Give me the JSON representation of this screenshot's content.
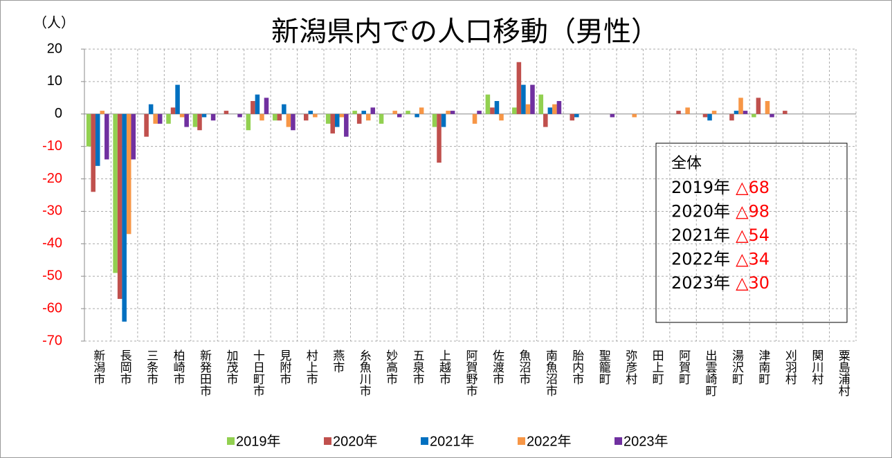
{
  "chart_data": {
    "type": "bar",
    "title": "新潟県内での人口移動（男性）",
    "y_unit": "（人）",
    "categories": [
      "新潟市",
      "長岡市",
      "三条市",
      "柏崎市",
      "新発田市",
      "加茂市",
      "十日町市",
      "見附市",
      "村上市",
      "燕市",
      "糸魚川市",
      "妙高市",
      "五泉市",
      "上越市",
      "阿賀野市",
      "佐渡市",
      "魚沼市",
      "南魚沼市",
      "胎内市",
      "聖籠町",
      "弥彦村",
      "田上町",
      "阿賀町",
      "出雲崎町",
      "湯沢町",
      "津南町",
      "刈羽村",
      "関川村",
      "粟島浦村"
    ],
    "series": [
      {
        "name": "2019年",
        "color": "#92d050",
        "values": [
          -10,
          -49,
          0,
          -3,
          -4,
          0,
          -5,
          -2,
          0,
          -3,
          1,
          -3,
          1,
          -4,
          0,
          6,
          2,
          6,
          0,
          0,
          0,
          0,
          0,
          0,
          0,
          -1,
          0,
          0,
          0
        ]
      },
      {
        "name": "2020年",
        "color": "#c0504d",
        "values": [
          -24,
          -57,
          -7,
          2,
          -5,
          1,
          4,
          -2,
          -2,
          -6,
          -3,
          0,
          0,
          -15,
          0,
          2,
          16,
          -4,
          -2,
          0,
          0,
          0,
          1,
          -1,
          -2,
          5,
          1,
          0,
          0
        ]
      },
      {
        "name": "2021年",
        "color": "#0070c0",
        "values": [
          -16,
          -64,
          3,
          9,
          -1,
          0,
          6,
          3,
          1,
          -4,
          1,
          0,
          -1,
          -4,
          0,
          4,
          9,
          2,
          -1,
          0,
          0,
          0,
          0,
          -2,
          1,
          0,
          0,
          0,
          0
        ]
      },
      {
        "name": "2022年",
        "color": "#f79646",
        "values": [
          1,
          -37,
          -3,
          -1,
          0,
          0,
          -2,
          -4,
          -1,
          -1,
          -2,
          1,
          2,
          1,
          -3,
          -2,
          3,
          3,
          0,
          0,
          -1,
          0,
          2,
          1,
          5,
          4,
          0,
          0,
          0
        ]
      },
      {
        "name": "2023年",
        "color": "#7030a0",
        "values": [
          -14,
          -14,
          -3,
          -4,
          -2,
          -1,
          5,
          -5,
          0,
          -7,
          2,
          -1,
          0,
          1,
          1,
          0,
          9,
          4,
          0,
          -1,
          0,
          0,
          0,
          0,
          1,
          -1,
          0,
          0,
          0
        ]
      }
    ],
    "ylim": [
      -70,
      20
    ],
    "yticks": [
      -70,
      -60,
      -50,
      -40,
      -30,
      -20,
      -10,
      0,
      10,
      20
    ],
    "grid": true,
    "legend": "bottom",
    "annotation": {
      "title": "全体",
      "items": [
        {
          "year": "2019年",
          "value": "△68"
        },
        {
          "year": "2020年",
          "value": "△98"
        },
        {
          "year": "2021年",
          "value": "△54"
        },
        {
          "year": "2022年",
          "value": "△34"
        },
        {
          "year": "2023年",
          "value": "△30"
        }
      ]
    }
  }
}
